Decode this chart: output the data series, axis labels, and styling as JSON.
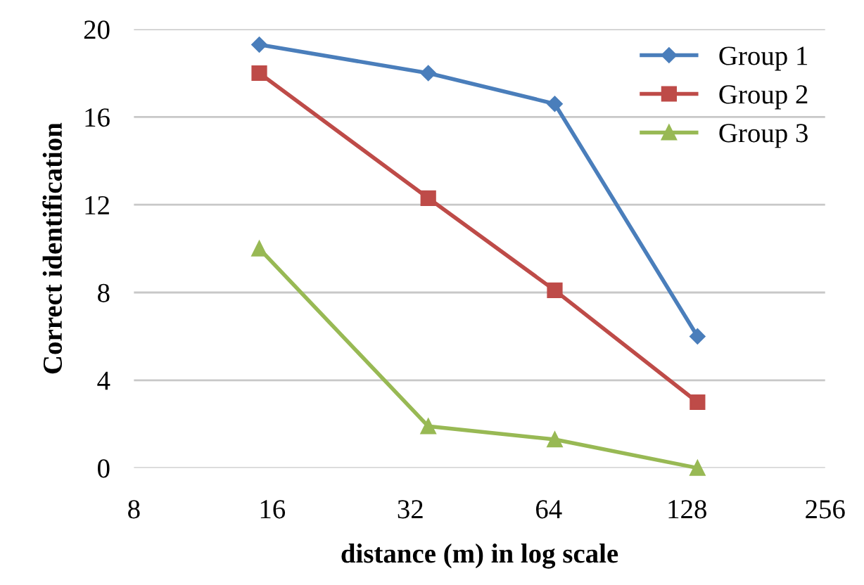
{
  "chart_data": {
    "type": "line",
    "xlabel": "distance (m) in log scale",
    "ylabel": "Correct identification",
    "log": "x",
    "xlim": [
      8,
      256
    ],
    "xticks": [
      8,
      16,
      32,
      64,
      128,
      256
    ],
    "ylim": [
      0,
      20
    ],
    "yticks": [
      0,
      4,
      8,
      12,
      16,
      20
    ],
    "grid": "y",
    "legend": "top right",
    "series": [
      {
        "name": "Group 1",
        "color": "#4a7ebb",
        "marker": "diamond",
        "x": [
          15,
          35,
          66,
          135
        ],
        "values": [
          19.3,
          18.0,
          16.6,
          6.0
        ]
      },
      {
        "name": "Group 2",
        "color": "#be4b48",
        "marker": "square",
        "x": [
          15,
          35,
          66,
          135
        ],
        "values": [
          18.0,
          12.3,
          8.1,
          3.0
        ]
      },
      {
        "name": "Group 3",
        "color": "#98b954",
        "marker": "triangle",
        "x": [
          15,
          35,
          66,
          135
        ],
        "values": [
          10.0,
          1.9,
          1.3,
          0.0
        ]
      }
    ]
  }
}
